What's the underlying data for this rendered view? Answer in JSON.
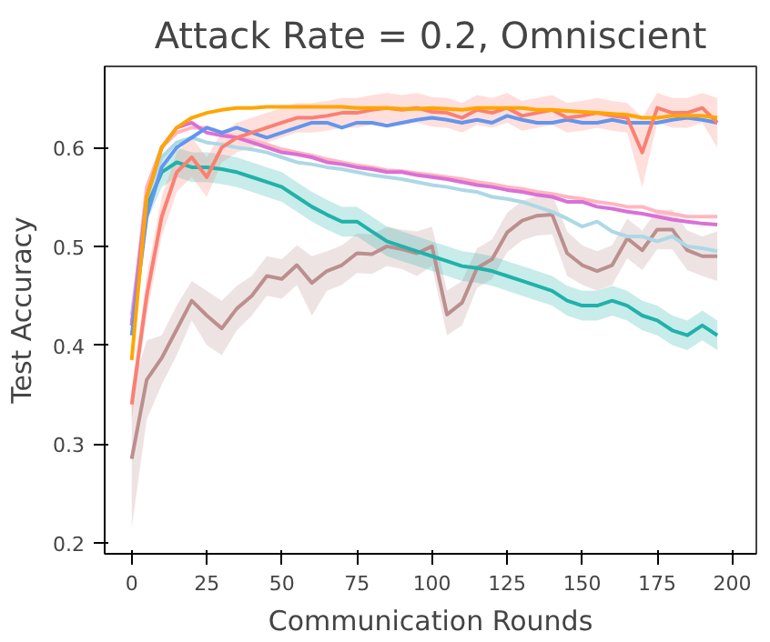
{
  "chart_data": {
    "type": "line",
    "title": "Attack Rate = 0.2, Omniscient",
    "xlabel": "Communication Rounds",
    "ylabel": "Test Accuracy",
    "x": [
      0,
      5,
      10,
      15,
      20,
      25,
      30,
      35,
      40,
      45,
      50,
      55,
      60,
      65,
      70,
      75,
      80,
      85,
      90,
      95,
      100,
      105,
      110,
      115,
      120,
      125,
      130,
      135,
      140,
      145,
      150,
      155,
      160,
      165,
      170,
      175,
      180,
      185,
      190,
      195
    ],
    "xlim": [
      -9,
      208
    ],
    "ylim": [
      0.189,
      0.682
    ],
    "xticks": [
      0,
      25,
      50,
      75,
      100,
      125,
      150,
      175,
      200
    ],
    "yticks": [
      0.2,
      0.3,
      0.4,
      0.5,
      0.6
    ],
    "grid": false,
    "marker": "none",
    "line_style": "solid",
    "series": [
      {
        "color": "#bc8f8f",
        "values": [
          0.285,
          0.365,
          0.387,
          0.416,
          0.445,
          0.43,
          0.417,
          0.437,
          0.45,
          0.47,
          0.467,
          0.481,
          0.463,
          0.475,
          0.481,
          0.493,
          0.492,
          0.5,
          0.497,
          0.493,
          0.5,
          0.431,
          0.443,
          0.478,
          0.487,
          0.514,
          0.526,
          0.531,
          0.532,
          0.493,
          0.481,
          0.475,
          0.481,
          0.508,
          0.496,
          0.517,
          0.517,
          0.496,
          0.49,
          0.49
        ],
        "lower": [
          0.215,
          0.325,
          0.36,
          0.39,
          0.425,
          0.4,
          0.39,
          0.415,
          0.43,
          0.45,
          0.447,
          0.461,
          0.43,
          0.455,
          0.461,
          0.473,
          0.472,
          0.48,
          0.477,
          0.47,
          0.48,
          0.41,
          0.42,
          0.458,
          0.467,
          0.494,
          0.506,
          0.511,
          0.512,
          0.47,
          0.461,
          0.455,
          0.461,
          0.488,
          0.476,
          0.497,
          0.497,
          0.476,
          0.47,
          0.465
        ],
        "upper": [
          0.355,
          0.405,
          0.41,
          0.44,
          0.465,
          0.455,
          0.445,
          0.46,
          0.47,
          0.49,
          0.487,
          0.501,
          0.49,
          0.495,
          0.501,
          0.513,
          0.512,
          0.52,
          0.517,
          0.515,
          0.52,
          0.455,
          0.465,
          0.498,
          0.507,
          0.534,
          0.546,
          0.551,
          0.552,
          0.515,
          0.501,
          0.495,
          0.501,
          0.528,
          0.516,
          0.537,
          0.537,
          0.516,
          0.51,
          0.515
        ]
      },
      {
        "color": "#20b2aa",
        "values": [
          0.42,
          0.54,
          0.575,
          0.585,
          0.58,
          0.58,
          0.578,
          0.575,
          0.57,
          0.565,
          0.56,
          0.55,
          0.54,
          0.532,
          0.525,
          0.525,
          0.515,
          0.505,
          0.5,
          0.495,
          0.49,
          0.485,
          0.48,
          0.478,
          0.475,
          0.47,
          0.465,
          0.46,
          0.455,
          0.445,
          0.44,
          0.44,
          0.445,
          0.44,
          0.43,
          0.425,
          0.415,
          0.41,
          0.42,
          0.41
        ],
        "lower": [
          0.4,
          0.525,
          0.56,
          0.57,
          0.565,
          0.565,
          0.563,
          0.56,
          0.555,
          0.55,
          0.545,
          0.535,
          0.525,
          0.517,
          0.51,
          0.51,
          0.5,
          0.49,
          0.485,
          0.48,
          0.475,
          0.47,
          0.465,
          0.463,
          0.46,
          0.455,
          0.45,
          0.445,
          0.44,
          0.43,
          0.425,
          0.425,
          0.43,
          0.425,
          0.415,
          0.41,
          0.4,
          0.395,
          0.405,
          0.395
        ],
        "upper": [
          0.44,
          0.555,
          0.59,
          0.6,
          0.595,
          0.595,
          0.593,
          0.59,
          0.585,
          0.58,
          0.575,
          0.565,
          0.555,
          0.547,
          0.54,
          0.54,
          0.53,
          0.52,
          0.515,
          0.51,
          0.505,
          0.5,
          0.495,
          0.493,
          0.49,
          0.485,
          0.48,
          0.475,
          0.47,
          0.46,
          0.455,
          0.455,
          0.46,
          0.455,
          0.445,
          0.44,
          0.43,
          0.425,
          0.435,
          0.425
        ]
      },
      {
        "color": "#add8e6",
        "values": [
          0.43,
          0.55,
          0.59,
          0.605,
          0.61,
          0.605,
          0.603,
          0.6,
          0.598,
          0.595,
          0.59,
          0.585,
          0.583,
          0.58,
          0.578,
          0.575,
          0.572,
          0.57,
          0.568,
          0.565,
          0.562,
          0.56,
          0.557,
          0.555,
          0.55,
          0.548,
          0.545,
          0.54,
          0.535,
          0.528,
          0.52,
          0.525,
          0.515,
          0.51,
          0.51,
          0.505,
          0.51,
          0.5,
          0.498,
          0.495
        ]
      },
      {
        "color": "#ffb6c1",
        "values": [
          0.42,
          0.56,
          0.6,
          0.615,
          0.62,
          0.62,
          0.615,
          0.61,
          0.607,
          0.603,
          0.598,
          0.595,
          0.592,
          0.588,
          0.585,
          0.582,
          0.58,
          0.577,
          0.576,
          0.574,
          0.572,
          0.57,
          0.568,
          0.565,
          0.563,
          0.56,
          0.558,
          0.555,
          0.553,
          0.55,
          0.548,
          0.545,
          0.543,
          0.54,
          0.54,
          0.535,
          0.533,
          0.53,
          0.53,
          0.53
        ]
      },
      {
        "color": "#da70d6",
        "values": [
          0.42,
          0.55,
          0.6,
          0.62,
          0.625,
          0.615,
          0.612,
          0.61,
          0.605,
          0.6,
          0.595,
          0.593,
          0.59,
          0.585,
          0.583,
          0.58,
          0.578,
          0.575,
          0.575,
          0.572,
          0.57,
          0.568,
          0.565,
          0.562,
          0.56,
          0.557,
          0.555,
          0.552,
          0.55,
          0.545,
          0.545,
          0.54,
          0.538,
          0.535,
          0.533,
          0.53,
          0.527,
          0.525,
          0.523,
          0.522
        ]
      },
      {
        "color": "#6495ed",
        "values": [
          0.41,
          0.53,
          0.58,
          0.6,
          0.61,
          0.62,
          0.615,
          0.62,
          0.615,
          0.61,
          0.615,
          0.62,
          0.625,
          0.625,
          0.62,
          0.625,
          0.625,
          0.622,
          0.625,
          0.628,
          0.63,
          0.628,
          0.625,
          0.628,
          0.625,
          0.632,
          0.628,
          0.625,
          0.625,
          0.628,
          0.625,
          0.625,
          0.628,
          0.625,
          0.625,
          0.625,
          0.628,
          0.63,
          0.628,
          0.625
        ]
      },
      {
        "color": "#fa8072",
        "values": [
          0.34,
          0.45,
          0.53,
          0.575,
          0.59,
          0.57,
          0.6,
          0.61,
          0.615,
          0.62,
          0.625,
          0.63,
          0.63,
          0.632,
          0.635,
          0.635,
          0.638,
          0.64,
          0.638,
          0.64,
          0.636,
          0.635,
          0.63,
          0.638,
          0.635,
          0.64,
          0.632,
          0.635,
          0.638,
          0.63,
          0.632,
          0.635,
          0.632,
          0.63,
          0.595,
          0.64,
          0.635,
          0.635,
          0.64,
          0.625
        ],
        "lower": [
          0.325,
          0.43,
          0.51,
          0.555,
          0.57,
          0.55,
          0.585,
          0.595,
          0.6,
          0.605,
          0.61,
          0.615,
          0.615,
          0.617,
          0.62,
          0.62,
          0.623,
          0.625,
          0.623,
          0.625,
          0.621,
          0.62,
          0.615,
          0.623,
          0.62,
          0.625,
          0.617,
          0.62,
          0.623,
          0.615,
          0.617,
          0.62,
          0.617,
          0.615,
          0.56,
          0.625,
          0.62,
          0.62,
          0.625,
          0.6
        ],
        "upper": [
          0.355,
          0.47,
          0.55,
          0.595,
          0.61,
          0.59,
          0.615,
          0.625,
          0.63,
          0.635,
          0.64,
          0.645,
          0.645,
          0.647,
          0.65,
          0.65,
          0.653,
          0.655,
          0.653,
          0.655,
          0.651,
          0.65,
          0.645,
          0.653,
          0.65,
          0.655,
          0.647,
          0.65,
          0.653,
          0.645,
          0.647,
          0.65,
          0.647,
          0.645,
          0.63,
          0.655,
          0.65,
          0.65,
          0.655,
          0.65
        ]
      },
      {
        "color": "#ffa500",
        "values": [
          0.385,
          0.55,
          0.6,
          0.62,
          0.63,
          0.635,
          0.638,
          0.64,
          0.64,
          0.641,
          0.641,
          0.641,
          0.641,
          0.641,
          0.641,
          0.64,
          0.64,
          0.64,
          0.639,
          0.639,
          0.64,
          0.639,
          0.638,
          0.64,
          0.64,
          0.64,
          0.64,
          0.638,
          0.638,
          0.637,
          0.636,
          0.635,
          0.634,
          0.633,
          0.63,
          0.63,
          0.632,
          0.632,
          0.632,
          0.63
        ]
      }
    ]
  }
}
